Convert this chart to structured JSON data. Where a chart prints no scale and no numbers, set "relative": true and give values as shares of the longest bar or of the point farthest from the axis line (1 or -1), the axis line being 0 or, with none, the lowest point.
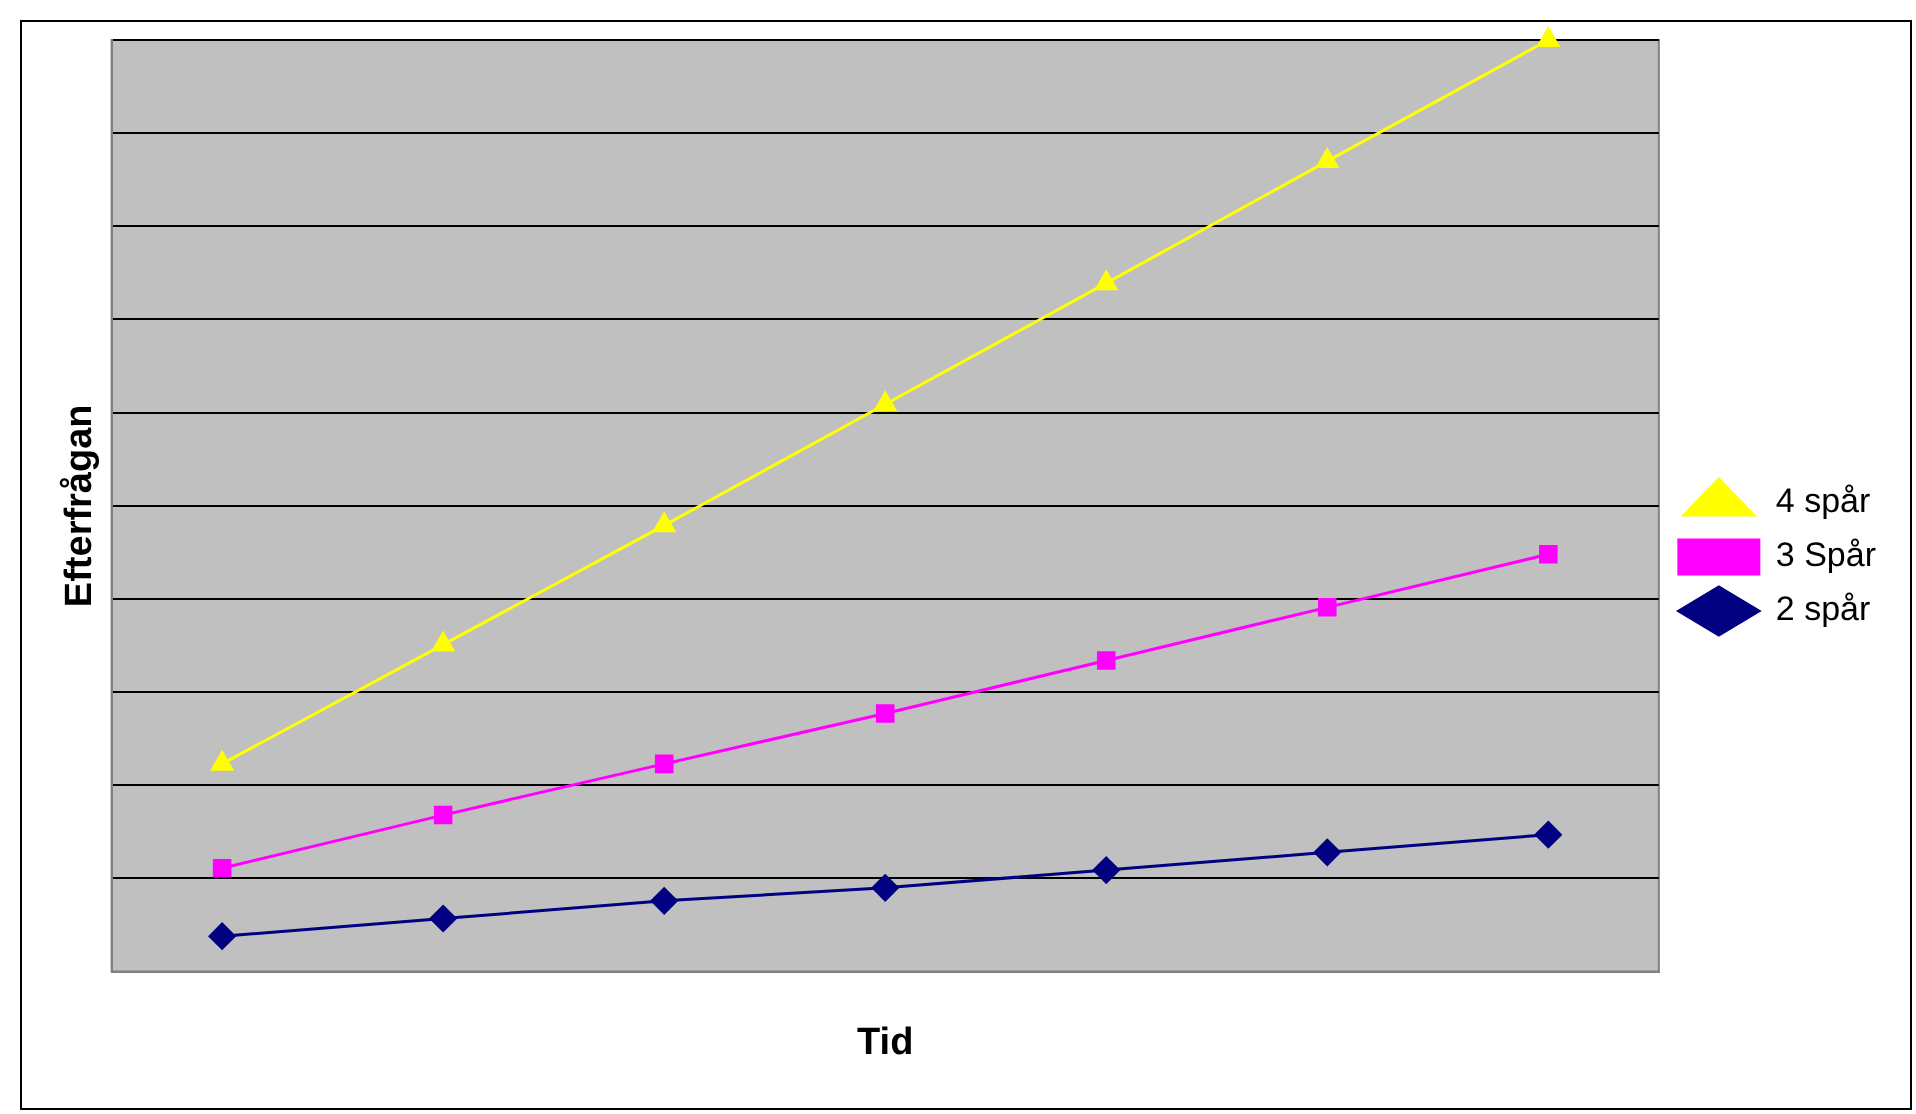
{
  "chart_data": {
    "type": "line",
    "relative": true,
    "xlabel": "Tid",
    "ylabel": "Efterfrågan",
    "categories": [
      null,
      null,
      null,
      null,
      null,
      null,
      null
    ],
    "grid": "y",
    "legend": "right",
    "line_style": "solid",
    "series": [
      {
        "name": "4 spår",
        "color": "#ffff00",
        "marker": "triangle",
        "values": [
          0.223,
          0.351,
          0.479,
          0.609,
          0.739,
          0.87,
          1
        ]
      },
      {
        "name": "3 Spår",
        "color": "#ff00ff",
        "marker": "square",
        "values": [
          0.111,
          0.168,
          0.223,
          0.277,
          0.334,
          0.391,
          0.448
        ]
      },
      {
        "name": "2 spår",
        "color": "#000080",
        "marker": "diamond",
        "values": [
          0.038,
          0.057,
          0.076,
          0.09,
          0.109,
          0.128,
          0.147
        ]
      }
    ]
  }
}
